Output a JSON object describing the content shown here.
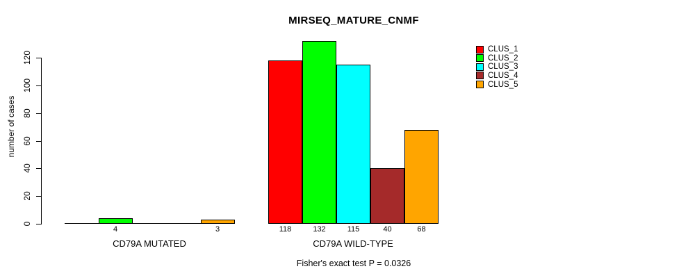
{
  "title": "MIRSEQ_MATURE_CNMF",
  "chart_data": {
    "type": "bar",
    "title": "MIRSEQ_MATURE_CNMF",
    "xlabel": "",
    "ylabel": "number of cases",
    "categories": [
      "CD79A MUTATED",
      "CD79A WILD-TYPE"
    ],
    "series": [
      {
        "name": "CLUS_1",
        "color": "#FF0000",
        "values": [
          0,
          118
        ]
      },
      {
        "name": "CLUS_2",
        "color": "#00FF00",
        "values": [
          4,
          132
        ]
      },
      {
        "name": "CLUS_3",
        "color": "#00FFFF",
        "values": [
          0,
          115
        ]
      },
      {
        "name": "CLUS_4",
        "color": "#A52A2A",
        "values": [
          0,
          40
        ]
      },
      {
        "name": "CLUS_5",
        "color": "#FFA500",
        "values": [
          3,
          68
        ]
      }
    ],
    "bar_value_labels": [
      [
        "",
        "4",
        "",
        "",
        "3"
      ],
      [
        "118",
        "132",
        "115",
        "40",
        "68"
      ]
    ],
    "yticks": [
      "0",
      "20",
      "40",
      "60",
      "80",
      "100",
      "120"
    ],
    "ylim": [
      0,
      132
    ],
    "grid": false,
    "legend_position": "top-right",
    "legend_entries": [
      {
        "label": "CLUS_1",
        "color": "#FF0000"
      },
      {
        "label": "CLUS_2",
        "color": "#00FF00"
      },
      {
        "label": "CLUS_3",
        "color": "#00FFFF"
      },
      {
        "label": "CLUS_4",
        "color": "#A52A2A"
      },
      {
        "label": "CLUS_5",
        "color": "#FFA500"
      }
    ],
    "annotation": "Fisher's exact test P = 0.0326"
  }
}
